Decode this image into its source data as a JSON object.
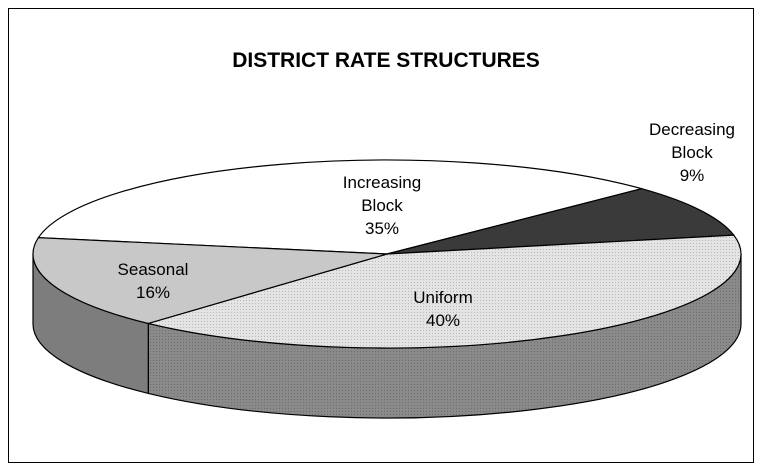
{
  "chart_data": {
    "type": "pie",
    "title": "DISTRICT RATE STRUCTURES",
    "slices": [
      {
        "label": [
          "Increasing",
          "Block"
        ],
        "value": 35,
        "value_label": "35%",
        "color": "#ffffff"
      },
      {
        "label": [
          "Decreasing",
          "Block"
        ],
        "value": 9,
        "value_label": "9%",
        "color": "#333333"
      },
      {
        "label": [
          "Uniform"
        ],
        "value": 40,
        "value_label": "40%",
        "color": "#d9d9d9"
      },
      {
        "label": [
          "Seasonal"
        ],
        "value": 16,
        "value_label": "16%",
        "color": "#c0c0c0"
      }
    ],
    "legend": "none",
    "style": "3d"
  }
}
